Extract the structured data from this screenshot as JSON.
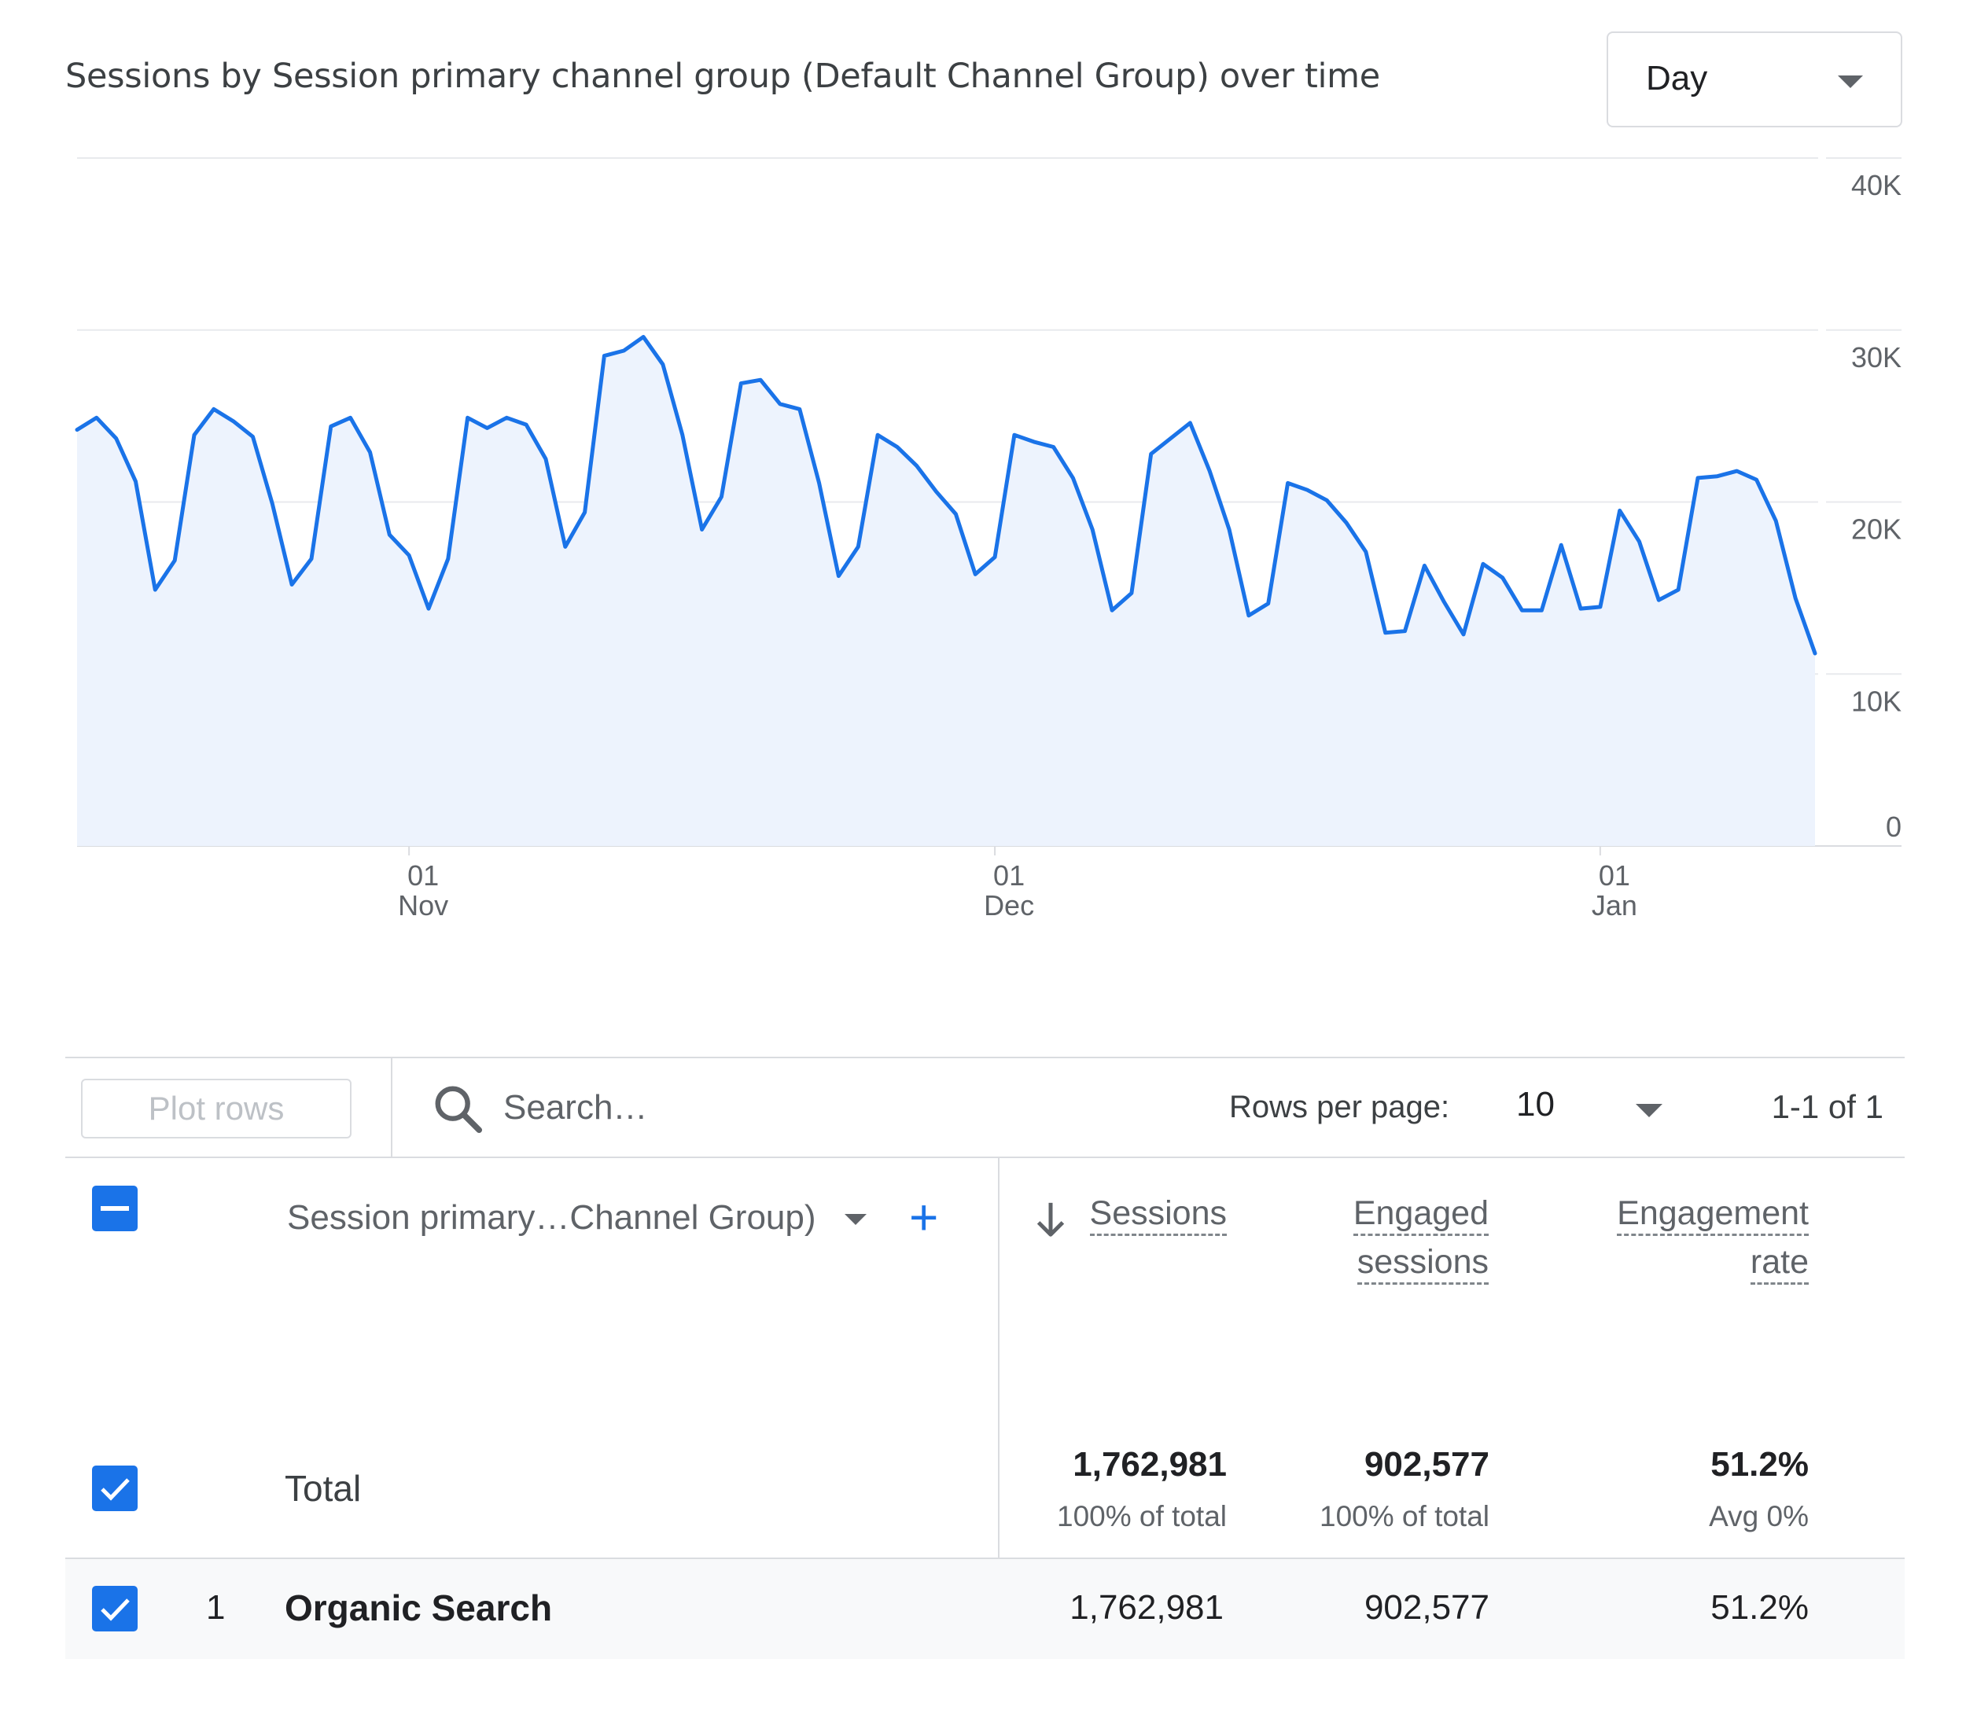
{
  "header": {
    "title": "Sessions by Session primary channel group (Default Channel Group) over time",
    "granularity": "Day"
  },
  "chart_data": {
    "type": "area",
    "y_ticks": [
      "40K",
      "30K",
      "20K",
      "10K",
      "0"
    ],
    "ylim": [
      0,
      40000
    ],
    "x_ticks": [
      {
        "day": "01",
        "month": "Nov"
      },
      {
        "day": "01",
        "month": "Dec"
      },
      {
        "day": "01",
        "month": "Jan"
      }
    ],
    "x_tick_index": [
      17,
      47,
      78
    ],
    "grid": true,
    "color": "#1a73e8",
    "fill": "#edf3fd",
    "series": [
      {
        "values": [
          24200,
          24900,
          23700,
          21200,
          14900,
          16600,
          23900,
          25400,
          24700,
          23800,
          19900,
          15200,
          16700,
          24400,
          24900,
          22900,
          18100,
          16900,
          13800,
          16700,
          24900,
          24300,
          24900,
          24500,
          22500,
          17400,
          19400,
          28500,
          28800,
          29600,
          28000,
          23900,
          18400,
          20300,
          26900,
          27100,
          25700,
          25400,
          21100,
          15700,
          17400,
          23900,
          23200,
          22100,
          20600,
          19300,
          15800,
          16800,
          23900,
          23500,
          23200,
          21400,
          18400,
          13700,
          14700,
          22800,
          23700,
          24600,
          21800,
          18400,
          13400,
          14100,
          21100,
          20700,
          20100,
          18800,
          17100,
          12400,
          12500,
          16300,
          14200,
          12300,
          16400,
          15600,
          13700,
          13700,
          17500,
          13800,
          13900,
          19500,
          17700,
          14300,
          14900,
          21400,
          21500,
          21800,
          21300,
          18900,
          14400,
          11200
        ]
      }
    ]
  },
  "toolbar": {
    "plot_rows": "Plot rows",
    "search_placeholder": "Search…",
    "rows_per_page_label": "Rows per page:",
    "rows_per_page_value": "10",
    "pagination": "1-1 of 1"
  },
  "table": {
    "dimension_header": "Session primary…Channel Group)",
    "add_dimension": "+",
    "columns": [
      {
        "line1": "Sessions",
        "line2": ""
      },
      {
        "line1": "Engaged",
        "line2": "sessions"
      },
      {
        "line1": "Engagement",
        "line2": "rate"
      }
    ],
    "total": {
      "label": "Total",
      "values": [
        "1,762,981",
        "902,577",
        "51.2%"
      ],
      "subs": [
        "100% of total",
        "100% of total",
        "Avg 0%"
      ]
    },
    "rows": [
      {
        "index": "1",
        "label": "Organic Search",
        "values": [
          "1,762,981",
          "902,577",
          "51.2%"
        ]
      }
    ]
  }
}
